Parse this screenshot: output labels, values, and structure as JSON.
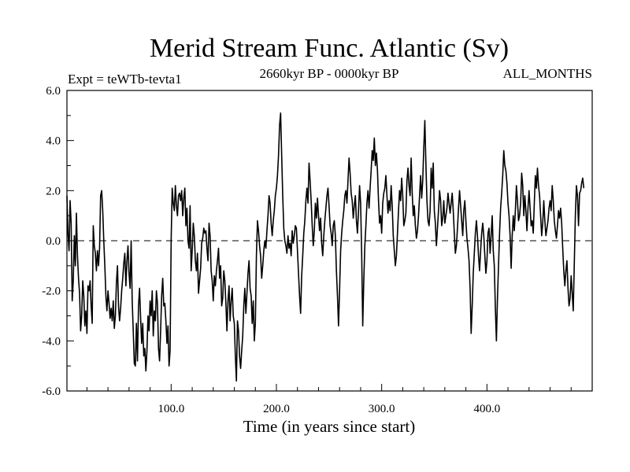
{
  "chart_data": {
    "type": "line",
    "title": "Merid Stream Func. Atlantic (Sv)",
    "left_annotation": "Expt = teWTb-tevta1",
    "center_annotation": "2660kyr BP - 0000kyr BP",
    "right_annotation": "ALL_MONTHS",
    "xlabel": "Time (in years since start)",
    "ylabel": "",
    "xlim": [
      1,
      500
    ],
    "ylim": [
      -6,
      6
    ],
    "x_ticks": [
      100,
      200,
      300,
      400
    ],
    "x_tick_labels": [
      "100.0",
      "200.0",
      "300.0",
      "400.0"
    ],
    "y_ticks": [
      6,
      4,
      2,
      0,
      -2,
      -4,
      -6
    ],
    "y_tick_labels": [
      "6.0",
      "4.0",
      "2.0",
      "0.0",
      "-2.0",
      "-4.0",
      "-6.0"
    ],
    "reference_line": {
      "y": 0,
      "style": "dashed"
    },
    "series": [
      {
        "name": "Merid Stream Func. Atlantic",
        "x_start": 1,
        "x_step": 1,
        "values": [
          1.8,
          0.3,
          -0.4,
          1.6,
          0.7,
          -2.4,
          -1.6,
          0.2,
          -1.0,
          1.1,
          -0.6,
          -1.5,
          -2.1,
          -3.6,
          -3.0,
          -1.6,
          -2.2,
          -3.4,
          -2.8,
          -3.7,
          -1.8,
          -2.0,
          -1.6,
          -2.6,
          -3.3,
          0.6,
          -0.2,
          -0.5,
          -1.2,
          -0.4,
          -1.0,
          -0.3,
          1.8,
          2.0,
          1.2,
          0.0,
          -1.0,
          -2.2,
          -2.8,
          -2.0,
          -2.5,
          -3.1,
          -2.7,
          -3.2,
          -2.4,
          -3.5,
          -3.0,
          -1.7,
          -1.0,
          -2.6,
          -3.2,
          -2.7,
          -2.0,
          -1.5,
          -0.9,
          -0.5,
          -1.8,
          -0.8,
          -0.2,
          -1.3,
          -1.9,
          0.0,
          -2.4,
          -3.6,
          -4.9,
          -5.0,
          -3.3,
          -4.8,
          -2.6,
          -1.9,
          -3.1,
          -4.1,
          -3.3,
          -4.6,
          -4.3,
          -5.2,
          -4.4,
          -3.0,
          -3.6,
          -2.4,
          -3.0,
          -2.0,
          -3.8,
          -2.8,
          -3.2,
          -2.0,
          -2.5,
          -4.3,
          -4.8,
          -3.6,
          -2.2,
          -1.5,
          -2.6,
          -2.5,
          -3.2,
          -4.1,
          -3.4,
          -5.0,
          -4.4,
          0.0,
          2.1,
          1.5,
          1.2,
          2.2,
          1.4,
          1.0,
          1.8,
          1.9,
          1.6,
          2.0,
          1.0,
          1.7,
          2.1,
          0.6,
          1.3,
          0.0,
          -0.3,
          1.4,
          -1.2,
          -0.4,
          0.7,
          0.2,
          -0.8,
          -1.2,
          -0.5,
          -2.1,
          -1.6,
          -1.1,
          -0.1,
          0.1,
          0.5,
          0.3,
          0.4,
          -0.3,
          -0.8,
          0.7,
          0.2,
          -1.2,
          -1.6,
          -2.4,
          -1.4,
          -1.8,
          -1.2,
          -0.8,
          -0.3,
          -1.5,
          -1.0,
          -2.6,
          -2.3,
          -1.2,
          -1.6,
          -2.5,
          -3.6,
          -2.4,
          -1.8,
          -3.2,
          -2.4,
          -1.9,
          -3.0,
          -3.3,
          -4.6,
          -5.6,
          -3.2,
          -3.6,
          -4.6,
          -5.1,
          -4.4,
          -3.8,
          -2.6,
          -1.9,
          -2.9,
          -2.1,
          -1.3,
          -0.8,
          -1.9,
          -2.2,
          -3.3,
          -2.4,
          -4.0,
          -3.3,
          -0.6,
          0.8,
          0.4,
          -0.2,
          -0.6,
          -1.5,
          -1.0,
          -0.4,
          0.0,
          -0.3,
          0.4,
          1.0,
          1.8,
          1.5,
          0.7,
          0.2,
          0.8,
          1.2,
          1.8,
          2.1,
          2.6,
          3.4,
          4.6,
          5.1,
          3.4,
          1.8,
          0.5,
          0.0,
          -0.2,
          -0.5,
          0.2,
          -0.3,
          -0.1,
          -0.6,
          0.4,
          -0.1,
          0.2,
          0.6,
          0.5,
          -0.4,
          -1.3,
          -2.2,
          -2.9,
          -1.4,
          -0.6,
          0.3,
          0.8,
          1.6,
          2.1,
          1.5,
          3.1,
          2.4,
          1.6,
          0.6,
          -0.2,
          0.4,
          1.5,
          0.9,
          1.7,
          1.0,
          0.4,
          0.9,
          -0.1,
          -0.6,
          0.2,
          0.8,
          1.3,
          1.8,
          2.1,
          1.4,
          0.6,
          0.3,
          -0.2,
          0.6,
          0.8,
          0.2,
          -1.2,
          -2.2,
          -3.4,
          -2.0,
          -0.4,
          0.3,
          0.8,
          1.2,
          1.8,
          2.0,
          1.5,
          2.4,
          3.3,
          2.7,
          1.9,
          1.6,
          0.9,
          1.4,
          1.8,
          0.8,
          0.3,
          1.2,
          2.2,
          1.5,
          -0.5,
          -3.4,
          -1.6,
          -0.2,
          0.6,
          1.5,
          2.0,
          1.3,
          2.1,
          2.8,
          3.6,
          3.2,
          4.1,
          3.0,
          3.5,
          2.8,
          1.6,
          0.7,
          1.0,
          0.3,
          1.5,
          1.9,
          2.1,
          2.6,
          1.8,
          1.1,
          1.6,
          1.2,
          2.2,
          1.4,
          0.2,
          -0.4,
          -1.0,
          -0.6,
          0.3,
          1.2,
          2.0,
          1.6,
          2.5,
          1.8,
          0.6,
          0.8,
          1.1,
          2.4,
          2.9,
          2.2,
          1.8,
          3.3,
          1.9,
          1.0,
          1.4,
          0.6,
          0.1,
          0.4,
          1.0,
          1.8,
          2.6,
          1.7,
          2.4,
          3.7,
          4.8,
          3.1,
          1.6,
          0.8,
          0.6,
          1.2,
          2.9,
          2.1,
          3.1,
          1.2,
          0.7,
          -0.2,
          0.5,
          1.2,
          2.0,
          1.6,
          0.6,
          0.9,
          1.6,
          0.7,
          1.0,
          1.3,
          1.9,
          1.5,
          1.1,
          1.5,
          1.9,
          1.2,
          0.3,
          -0.5,
          -0.2,
          0.5,
          1.3,
          2.0,
          1.4,
          0.8,
          0.2,
          1.2,
          1.6,
          0.8,
          0.1,
          -0.3,
          -0.8,
          -1.9,
          -3.7,
          -2.6,
          -1.3,
          -0.5,
          0.3,
          0.8,
          0.2,
          -0.6,
          -1.2,
          -0.4,
          0.3,
          0.7,
          0.2,
          -0.6,
          -1.3,
          -0.8,
          0.3,
          0.5,
          -0.5,
          0.2,
          1.0,
          -0.4,
          -1.0,
          -2.7,
          -4.0,
          -2.3,
          -1.0,
          0.3,
          1.3,
          1.9,
          2.6,
          3.6,
          3.0,
          2.8,
          2.3,
          1.5,
          1.0,
          0.2,
          -1.1,
          0.2,
          1.0,
          0.4,
          1.2,
          2.2,
          1.6,
          0.8,
          1.0,
          1.5,
          2.7,
          2.2,
          1.0,
          1.8,
          1.2,
          0.4,
          1.3,
          2.0,
          1.3,
          0.6,
          0.8,
          0.3,
          1.5,
          2.6,
          2.1,
          2.9,
          2.2,
          1.8,
          1.0,
          0.2,
          0.7,
          1.6,
          0.8,
          0.2,
          0.5,
          0.8,
          1.3,
          1.6,
          1.2,
          2.2,
          1.6,
          0.8,
          0.4,
          0.1,
          0.6,
          1.2,
          0.9,
          1.3,
          0.7,
          -0.3,
          -1.2,
          -1.8,
          -1.2,
          -0.8,
          -1.9,
          -2.6,
          -2.3,
          -1.4,
          -2.1,
          -2.8,
          -0.9,
          1.0,
          2.2,
          1.8,
          0.6,
          1.9,
          2.0,
          2.3,
          2.5,
          2.1
        ]
      }
    ]
  }
}
